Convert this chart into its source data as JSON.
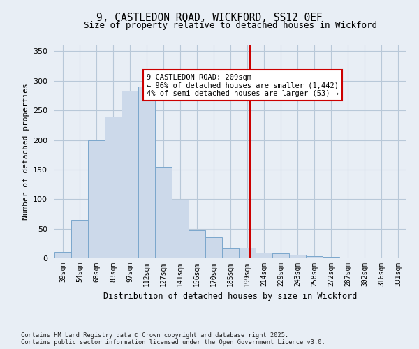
{
  "title": "9, CASTLEDON ROAD, WICKFORD, SS12 0EF",
  "subtitle": "Size of property relative to detached houses in Wickford",
  "xlabel": "Distribution of detached houses by size in Wickford",
  "ylabel": "Number of detached properties",
  "categories": [
    "39sqm",
    "54sqm",
    "68sqm",
    "83sqm",
    "97sqm",
    "112sqm",
    "127sqm",
    "141sqm",
    "156sqm",
    "170sqm",
    "185sqm",
    "199sqm",
    "214sqm",
    "229sqm",
    "243sqm",
    "258sqm",
    "272sqm",
    "287sqm",
    "302sqm",
    "316sqm",
    "331sqm"
  ],
  "bar_heights": [
    11,
    65,
    200,
    240,
    283,
    290,
    155,
    99,
    47,
    35,
    17,
    18,
    9,
    8,
    6,
    4,
    2,
    1,
    1,
    1,
    1
  ],
  "bar_color": "#ccd9ea",
  "bar_edge_color": "#7ba7cc",
  "vline_color": "#cc0000",
  "annotation_title": "9 CASTLEDON ROAD: 209sqm",
  "annotation_line1": "← 96% of detached houses are smaller (1,442)",
  "annotation_line2": "4% of semi-detached houses are larger (53) →",
  "annotation_box_color": "#cc0000",
  "ylim": [
    0,
    360
  ],
  "yticks": [
    0,
    50,
    100,
    150,
    200,
    250,
    300,
    350
  ],
  "footer": "Contains HM Land Registry data © Crown copyright and database right 2025.\nContains public sector information licensed under the Open Government Licence v3.0.",
  "bg_color": "#e8eef5",
  "plot_bg_color": "#e8eef5",
  "grid_color": "#b8c8d8"
}
